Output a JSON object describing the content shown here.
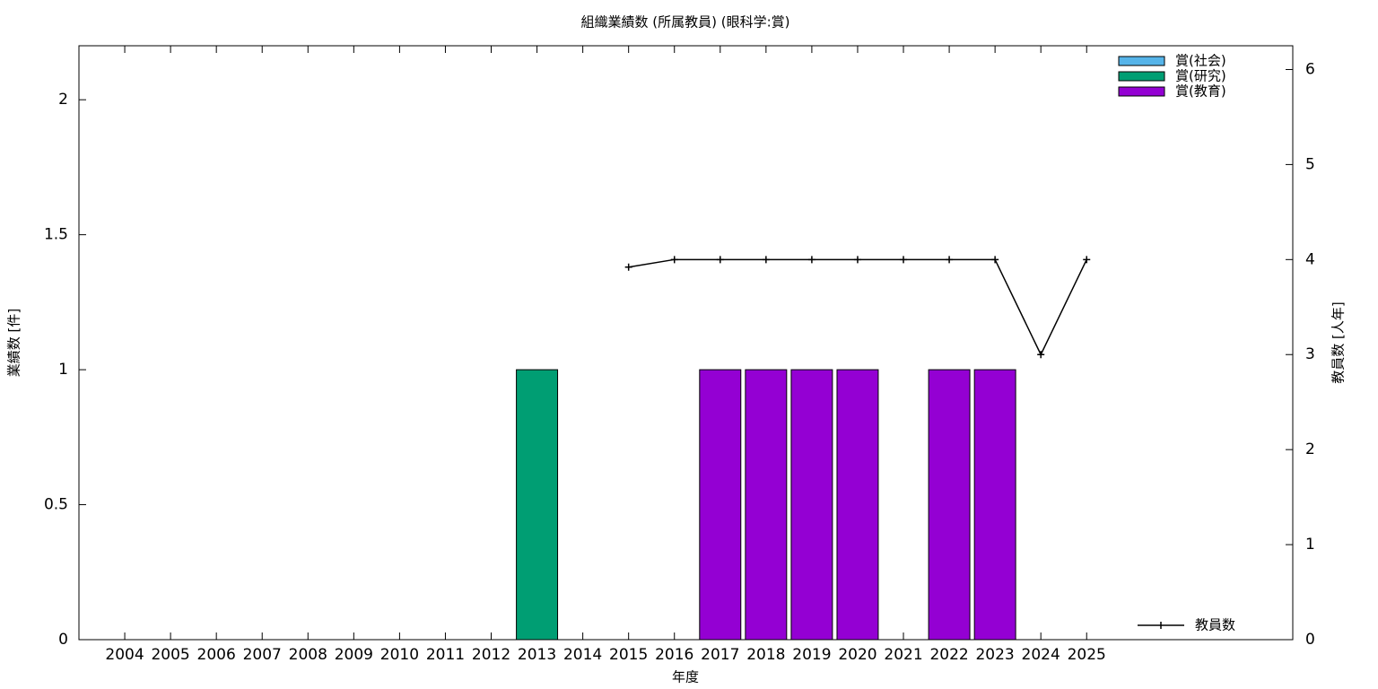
{
  "chart_data": {
    "type": "bar",
    "title": "組織業績数 (所属教員) (眼科学:賞)",
    "xlabel": "年度",
    "ylabel": "業績数 [件]",
    "y2label": "教員数 [人年]",
    "categories": [
      "2004",
      "2005",
      "2006",
      "2007",
      "2008",
      "2009",
      "2010",
      "2011",
      "2012",
      "2013",
      "2014",
      "2015",
      "2016",
      "2017",
      "2018",
      "2019",
      "2020",
      "2021",
      "2022",
      "2023",
      "2024",
      "2025"
    ],
    "stacked": true,
    "series": [
      {
        "name": "賞(社会)",
        "color": "#56b4e9",
        "values": [
          0,
          0,
          0,
          0,
          0,
          0,
          0,
          0,
          0,
          0,
          0,
          0,
          0,
          0,
          0,
          0,
          0,
          0,
          0,
          0,
          0,
          0
        ]
      },
      {
        "name": "賞(研究)",
        "color": "#009e73",
        "values": [
          0,
          0,
          0,
          0,
          0,
          0,
          0,
          0,
          0,
          1,
          0,
          0,
          0,
          0,
          0,
          0,
          0,
          0,
          0,
          0,
          0,
          0
        ]
      },
      {
        "name": "賞(教育)",
        "color": "#9400d3",
        "values": [
          0,
          0,
          0,
          0,
          0,
          0,
          0,
          0,
          0,
          0,
          0,
          0,
          0,
          1,
          1,
          1,
          1,
          0,
          1,
          1,
          0,
          0
        ]
      },
      {
        "name": "教員数",
        "color": "#000000",
        "type": "line",
        "axis": "y2",
        "values": [
          null,
          null,
          null,
          null,
          null,
          null,
          null,
          null,
          null,
          null,
          null,
          3.92,
          4,
          4,
          4,
          4,
          4,
          4,
          4,
          4,
          3,
          4
        ]
      }
    ],
    "ylim": [
      0,
      2.2
    ],
    "yticks": [
      0,
      0.5,
      1,
      1.5,
      2
    ],
    "y2lim": [
      0,
      6.25
    ],
    "y2ticks": [
      0,
      1,
      2,
      3,
      4,
      5,
      6
    ],
    "legend": "top-right"
  }
}
